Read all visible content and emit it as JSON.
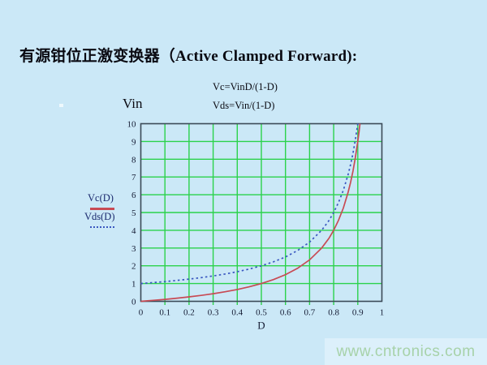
{
  "header": {
    "title": "有源钳位正激变换器（Active Clamped Forward):"
  },
  "annotations": {
    "vin_label": "Vin",
    "formula_vc": "Vc=VinD/(1-D)",
    "formula_vds": "Vds=Vin/(1-D)"
  },
  "legend": {
    "items": [
      {
        "label": "Vc(D)",
        "style": "solid",
        "color": "#c84a54"
      },
      {
        "label": "Vds(D)",
        "style": "dotted",
        "color": "#3a57c0"
      }
    ]
  },
  "colors": {
    "background": "#cbe8f7",
    "grid": "#2bd24b",
    "plot_border": "#3b4a57",
    "vc_curve": "#c84a54",
    "vds_curve": "#3a57c0",
    "watermark_bg": "#dcf0fb",
    "watermark_text": "#a7d2a9"
  },
  "chart_data": {
    "type": "line",
    "title": "",
    "xlabel": "D",
    "ylabel": "",
    "xlim": [
      0,
      1
    ],
    "ylim": [
      0,
      10
    ],
    "x_ticks": [
      0,
      0.1,
      0.2,
      0.3,
      0.4,
      0.5,
      0.6,
      0.7,
      0.8,
      0.9,
      1
    ],
    "y_ticks": [
      0,
      1,
      2,
      3,
      4,
      5,
      6,
      7,
      8,
      9,
      10
    ],
    "grid": true,
    "legend_position": "left-outside",
    "series": [
      {
        "name": "Vc(D)",
        "style": "solid",
        "color": "#c84a54",
        "points": [
          [
            0,
            0
          ],
          [
            0.05,
            0.053
          ],
          [
            0.1,
            0.111
          ],
          [
            0.15,
            0.176
          ],
          [
            0.2,
            0.25
          ],
          [
            0.25,
            0.333
          ],
          [
            0.3,
            0.429
          ],
          [
            0.35,
            0.538
          ],
          [
            0.4,
            0.667
          ],
          [
            0.45,
            0.818
          ],
          [
            0.5,
            1.0
          ],
          [
            0.55,
            1.222
          ],
          [
            0.6,
            1.5
          ],
          [
            0.65,
            1.857
          ],
          [
            0.7,
            2.333
          ],
          [
            0.75,
            3.0
          ],
          [
            0.78,
            3.545
          ],
          [
            0.8,
            4.0
          ],
          [
            0.82,
            4.556
          ],
          [
            0.84,
            5.25
          ],
          [
            0.86,
            6.143
          ],
          [
            0.87,
            6.692
          ],
          [
            0.88,
            7.333
          ],
          [
            0.89,
            8.091
          ],
          [
            0.9,
            9.0
          ],
          [
            0.905,
            9.526
          ],
          [
            0.909,
            10.0
          ]
        ]
      },
      {
        "name": "Vds(D)",
        "style": "dotted",
        "color": "#3a57c0",
        "points": [
          [
            0,
            1.0
          ],
          [
            0.05,
            1.053
          ],
          [
            0.1,
            1.111
          ],
          [
            0.15,
            1.176
          ],
          [
            0.2,
            1.25
          ],
          [
            0.25,
            1.333
          ],
          [
            0.3,
            1.429
          ],
          [
            0.35,
            1.538
          ],
          [
            0.4,
            1.667
          ],
          [
            0.45,
            1.818
          ],
          [
            0.5,
            2.0
          ],
          [
            0.55,
            2.222
          ],
          [
            0.6,
            2.5
          ],
          [
            0.65,
            2.857
          ],
          [
            0.7,
            3.333
          ],
          [
            0.75,
            4.0
          ],
          [
            0.78,
            4.545
          ],
          [
            0.8,
            5.0
          ],
          [
            0.82,
            5.556
          ],
          [
            0.84,
            6.25
          ],
          [
            0.86,
            7.143
          ],
          [
            0.87,
            7.692
          ],
          [
            0.88,
            8.333
          ],
          [
            0.89,
            9.091
          ],
          [
            0.9,
            10.0
          ]
        ]
      }
    ]
  },
  "watermark": {
    "text": "www.cntronics.com"
  }
}
